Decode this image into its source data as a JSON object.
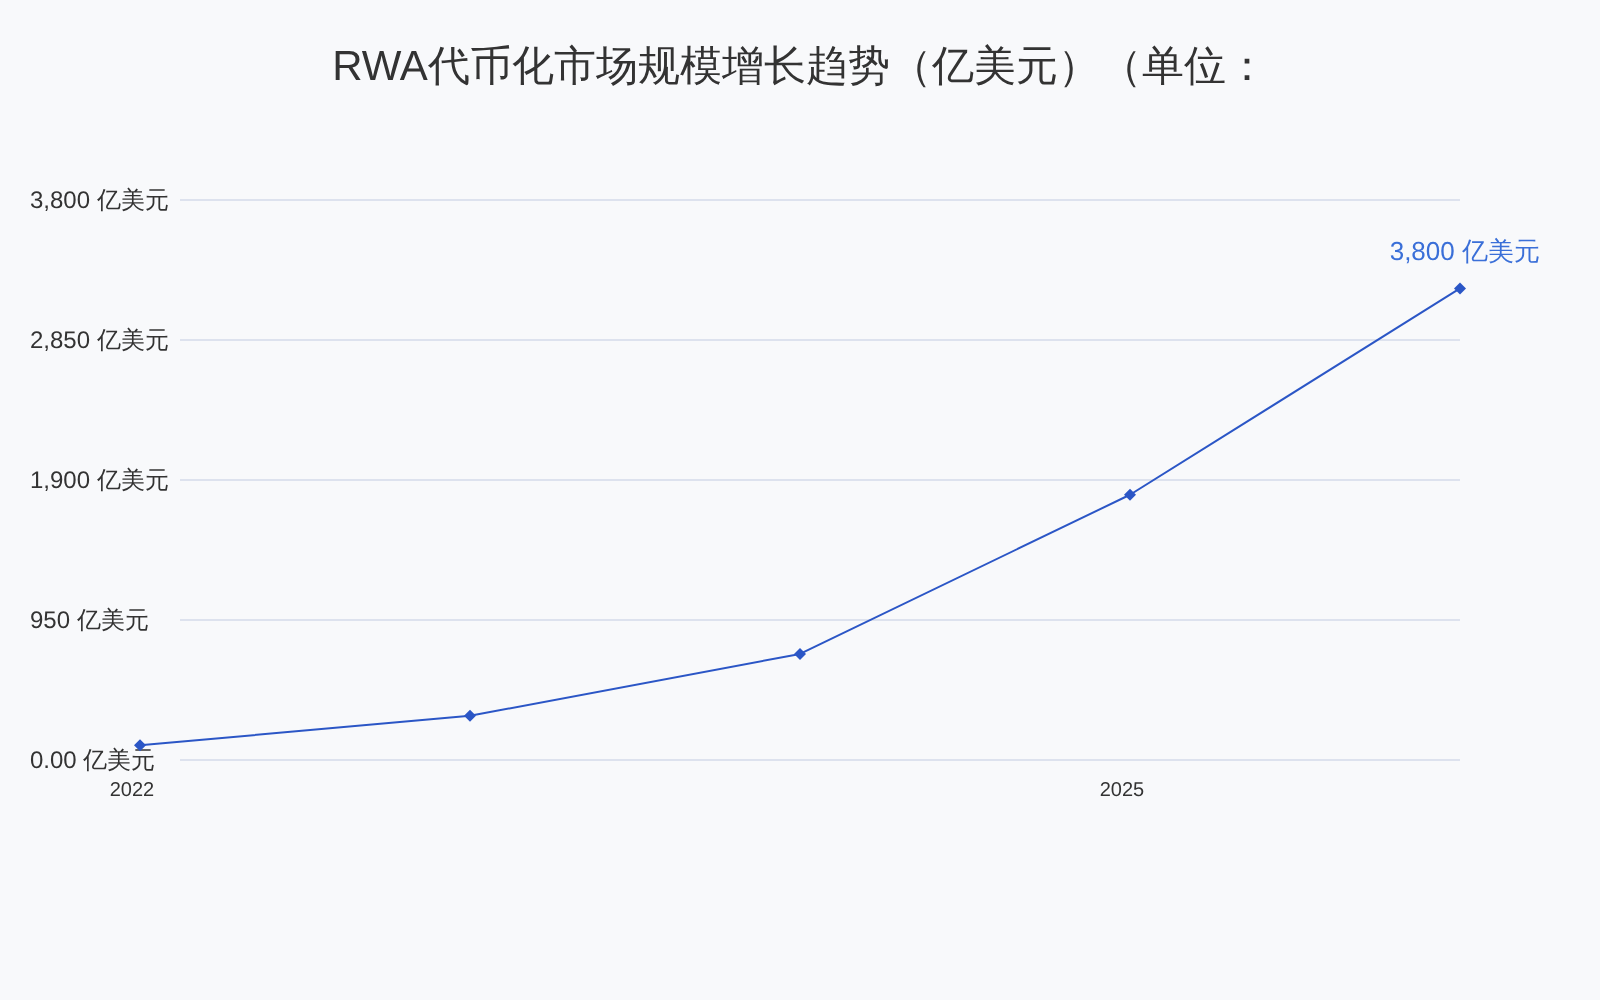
{
  "chart_data": {
    "type": "line",
    "title": "RWA代币化市场规模增长趋势（亿美元）（单位：",
    "x": [
      2022,
      2023,
      2024,
      2025,
      2026
    ],
    "series": [
      {
        "color": "#2b56c6",
        "values": [
          100,
          300,
          720,
          1800,
          3200
        ]
      }
    ],
    "xlim": [
      2022,
      2026
    ],
    "xticks": [
      2022,
      2025
    ],
    "ylim": [
      0,
      3800
    ],
    "yticks": [
      {
        "value": 0,
        "label": "0.00 亿美元"
      },
      {
        "value": 950,
        "label": "950 亿美元"
      },
      {
        "value": 1900,
        "label": "1,900 亿美元"
      },
      {
        "value": 2850,
        "label": "2,850 亿美元"
      },
      {
        "value": 3800,
        "label": "3,800 亿美元"
      }
    ],
    "annotations": [
      "3,800 亿美元"
    ],
    "grid": "y",
    "marker": "diamond",
    "line_style": "solid"
  }
}
